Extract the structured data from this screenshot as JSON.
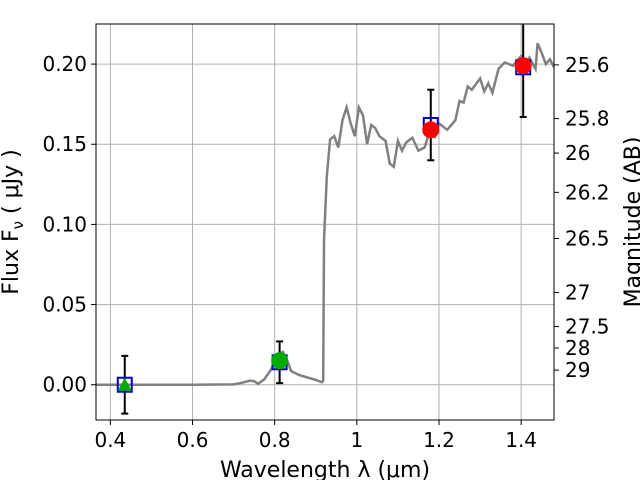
{
  "chart_data": {
    "type": "scatter",
    "xlabel": "Wavelength  λ (μm)",
    "ylabel": "Flux  F",
    "ylabel_subscript": "ν",
    "ylabel_unit": " ( μJy )",
    "y2label": "Magnitude (AB)",
    "xlim": [
      0.365,
      1.48
    ],
    "ylim": [
      -0.022,
      0.225
    ],
    "grid": true,
    "x_ticks": [
      0.4,
      0.6,
      0.8,
      1.0,
      1.2,
      1.4
    ],
    "x_tick_labels": [
      "0.4",
      "0.6",
      "0.8",
      "1",
      "1.2",
      "1.4"
    ],
    "y_ticks": [
      0.0,
      0.05,
      0.1,
      0.15,
      0.2
    ],
    "y_tick_labels": [
      "0.00",
      "0.05",
      "0.10",
      "0.15",
      "0.20"
    ],
    "y2_ticks": [
      {
        "flux": 0.1995,
        "label": "25.6"
      },
      {
        "flux": 0.166,
        "label": "25.8"
      },
      {
        "flux": 0.1445,
        "label": "26"
      },
      {
        "flux": 0.12,
        "label": "26.2"
      },
      {
        "flux": 0.0912,
        "label": "26.5"
      },
      {
        "flux": 0.0575,
        "label": "27"
      },
      {
        "flux": 0.0363,
        "label": "27.5"
      },
      {
        "flux": 0.0229,
        "label": "28"
      },
      {
        "flux": 0.0091,
        "label": "29"
      }
    ],
    "model_spectrum": {
      "color": "#808080",
      "points": [
        [
          0.365,
          0.0
        ],
        [
          0.5,
          0.0
        ],
        [
          0.6,
          0.0
        ],
        [
          0.7,
          0.0002
        ],
        [
          0.72,
          0.0012
        ],
        [
          0.74,
          0.0025
        ],
        [
          0.75,
          0.0022
        ],
        [
          0.76,
          0.0005
        ],
        [
          0.775,
          0.0035
        ],
        [
          0.79,
          0.009
        ],
        [
          0.8,
          0.0145
        ],
        [
          0.81,
          0.019
        ],
        [
          0.82,
          0.0205
        ],
        [
          0.83,
          0.0155
        ],
        [
          0.84,
          0.0085
        ],
        [
          0.86,
          0.006
        ],
        [
          0.88,
          0.0045
        ],
        [
          0.9,
          0.003
        ],
        [
          0.915,
          0.0015
        ],
        [
          0.918,
          0.0025
        ],
        [
          0.92,
          0.09
        ],
        [
          0.927,
          0.13
        ],
        [
          0.935,
          0.153
        ],
        [
          0.945,
          0.155
        ],
        [
          0.955,
          0.148
        ],
        [
          0.965,
          0.165
        ],
        [
          0.975,
          0.173
        ],
        [
          0.985,
          0.163
        ],
        [
          0.995,
          0.155
        ],
        [
          1.005,
          0.173
        ],
        [
          1.015,
          0.168
        ],
        [
          1.025,
          0.15
        ],
        [
          1.035,
          0.162
        ],
        [
          1.045,
          0.16
        ],
        [
          1.055,
          0.155
        ],
        [
          1.07,
          0.152
        ],
        [
          1.08,
          0.138
        ],
        [
          1.09,
          0.136
        ],
        [
          1.1,
          0.152
        ],
        [
          1.11,
          0.146
        ],
        [
          1.12,
          0.151
        ],
        [
          1.135,
          0.154
        ],
        [
          1.15,
          0.146
        ],
        [
          1.165,
          0.148
        ],
        [
          1.18,
          0.16
        ],
        [
          1.19,
          0.155
        ],
        [
          1.2,
          0.163
        ],
        [
          1.22,
          0.159
        ],
        [
          1.24,
          0.165
        ],
        [
          1.25,
          0.177
        ],
        [
          1.26,
          0.176
        ],
        [
          1.27,
          0.186
        ],
        [
          1.28,
          0.184
        ],
        [
          1.3,
          0.191
        ],
        [
          1.31,
          0.183
        ],
        [
          1.32,
          0.188
        ],
        [
          1.33,
          0.182
        ],
        [
          1.345,
          0.197
        ],
        [
          1.36,
          0.201
        ],
        [
          1.38,
          0.199
        ],
        [
          1.4,
          0.205
        ],
        [
          1.41,
          0.199
        ],
        [
          1.42,
          0.204
        ],
        [
          1.435,
          0.197
        ],
        [
          1.44,
          0.213
        ],
        [
          1.45,
          0.207
        ],
        [
          1.46,
          0.2
        ],
        [
          1.47,
          0.203
        ],
        [
          1.48,
          0.198
        ]
      ]
    },
    "observed_flux": {
      "color": "#0000cc",
      "marker": "open-square",
      "points": [
        {
          "x": 0.435,
          "y": 0.0,
          "err": 0.018
        },
        {
          "x": 0.812,
          "y": 0.014,
          "err": 0.013
        },
        {
          "x": 1.18,
          "y": 0.162,
          "err": 0.022
        },
        {
          "x": 1.405,
          "y": 0.198,
          "err": 0.031
        }
      ]
    },
    "model_photometry": [
      {
        "x": 0.435,
        "y": 0.0,
        "color": "#00aa00",
        "marker": "triangle"
      },
      {
        "x": 0.812,
        "y": 0.015,
        "color": "#00aa00",
        "marker": "circle"
      },
      {
        "x": 1.18,
        "y": 0.159,
        "color": "#ff0000",
        "marker": "circle"
      },
      {
        "x": 1.405,
        "y": 0.199,
        "color": "#ff0000",
        "marker": "circle"
      }
    ]
  }
}
